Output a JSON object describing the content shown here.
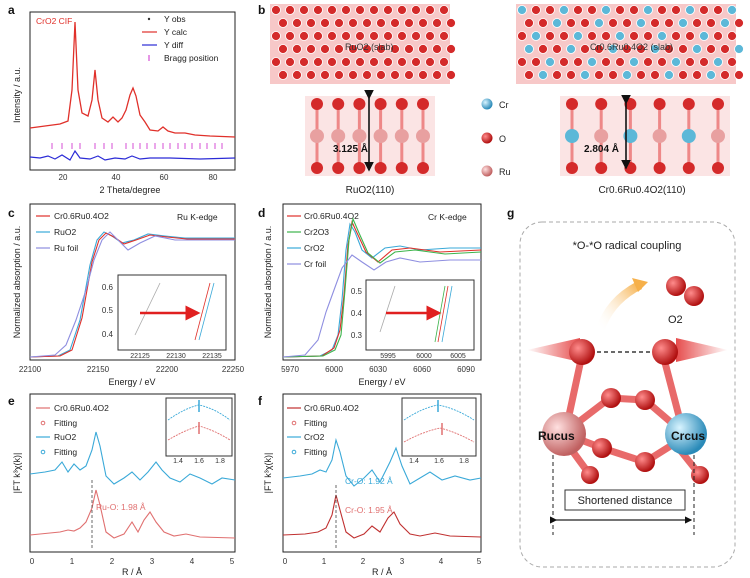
{
  "panels": {
    "a": {
      "label": "a",
      "sample": "CrO2 CIF",
      "legend": [
        "Y obs",
        "Y calc",
        "Y diff",
        "Bragg position"
      ],
      "xlabel": "2 Theta/degree",
      "ylabel": "Intensity / a.u.",
      "xticks": [
        "20",
        "40",
        "60",
        "80"
      ]
    },
    "b": {
      "label": "b",
      "slab1": "RuO2 (slab)",
      "slab2": "Cr0.6Ru0.4O2 (slab)",
      "dist1": "3.125 Å",
      "dist2": "2.804 Å",
      "caption1": "RuO2(110)",
      "caption2": "Cr0.6Ru0.4O2(110)",
      "atoms": [
        "Cr",
        "O",
        "Ru"
      ]
    },
    "c": {
      "label": "c",
      "edge": "Ru K-edge",
      "legend": [
        "Cr0.6Ru0.4O2",
        "RuO2",
        "Ru foil"
      ],
      "xlabel": "Energy / eV",
      "ylabel": "Normalized absorption / a.u.",
      "xticks": [
        "22100",
        "22150",
        "22200",
        "22250"
      ],
      "inset_xticks": [
        "22125",
        "22130",
        "22135"
      ],
      "inset_yticks": [
        "0.6",
        "0.5",
        "0.4"
      ]
    },
    "d": {
      "label": "d",
      "edge": "Cr K-edge",
      "legend": [
        "Cr0.6Ru0.4O2",
        "Cr2O3",
        "CrO2",
        "Cr foil"
      ],
      "xlabel": "Energy / eV",
      "ylabel": "Normalized absorption / a.u.",
      "xticks": [
        "5970",
        "6000",
        "6030",
        "6060",
        "6090"
      ],
      "inset_xticks": [
        "5995",
        "6000",
        "6005"
      ],
      "inset_yticks": [
        "0.5",
        "0.4",
        "0.3"
      ]
    },
    "e": {
      "label": "e",
      "legend": [
        "Cr0.6Ru0.4O2",
        "Fitting",
        "RuO2",
        "Fitting"
      ],
      "annotation": "Ru-O: 1.98 Å",
      "xlabel": "R / Å",
      "ylabel": "|FT k³χ(k)|",
      "xticks": [
        "0",
        "1",
        "2",
        "3",
        "4",
        "5"
      ],
      "inset_xticks": [
        "1.4",
        "1.6",
        "1.8"
      ]
    },
    "f": {
      "label": "f",
      "legend": [
        "Cr0.6Ru0.4O2",
        "Fitting",
        "CrO2",
        "Fitting"
      ],
      "annotation_top": "Cr-O: 1.92 Å",
      "annotation_bottom": "Cr-O: 1.95 Å",
      "xlabel": "R / Å",
      "ylabel": "|FT k³χ(k)|",
      "xticks": [
        "0",
        "1",
        "2",
        "3",
        "4",
        "5"
      ],
      "inset_xticks": [
        "1.4",
        "1.6",
        "1.8"
      ]
    },
    "g": {
      "label": "g",
      "title": "*O-*O radical coupling",
      "product": "O2",
      "ru_label": "Rucus",
      "cr_label": "Crcus",
      "distance": "Shortened distance"
    }
  },
  "colors": {
    "red": "#e0302a",
    "blue": "#2b2bd6",
    "pink": "#d44fd4",
    "cyan": "#3aa9d8",
    "green": "#3cb44b",
    "oxygen": "#d42a2a",
    "ruthenium": "#e8a0a0",
    "chromium": "#5cb8d8"
  }
}
